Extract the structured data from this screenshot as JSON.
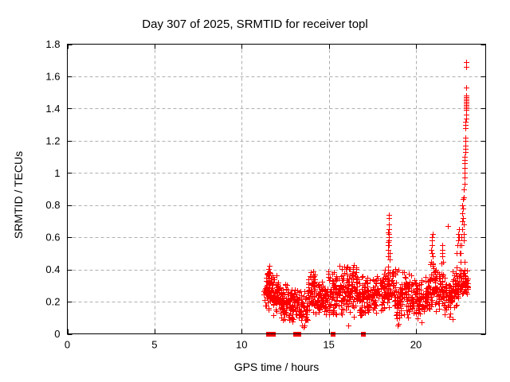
{
  "chart_data": {
    "type": "scatter",
    "title": "Day 307 of 2025, SRMTID for receiver topl",
    "xlabel": "GPS time / hours",
    "ylabel": "SRMTID / TECUs",
    "xlim": [
      0,
      24
    ],
    "ylim": [
      0,
      1.8
    ],
    "xticks": {
      "values": [
        0,
        5,
        10,
        15,
        20
      ],
      "labels": [
        "0",
        "5",
        "10",
        "15",
        "20"
      ]
    },
    "yticks": {
      "values": [
        0,
        0.2,
        0.4,
        0.6,
        0.8,
        1.0,
        1.2,
        1.4,
        1.6,
        1.8
      ],
      "labels": [
        "0",
        "0.2",
        "0.4",
        "0.6",
        "0.8",
        "1",
        "1.2",
        "1.4",
        "1.6",
        "1.8"
      ]
    },
    "grid": "dashed",
    "legend": "none",
    "marker": "plus",
    "marker_color": "#ff0000",
    "grid_color": "#b0b0b0",
    "axis_color": "#000000",
    "background": "#ffffff",
    "data_span_hours": [
      11.25,
      23.0
    ],
    "seed": 307,
    "noise_band_segments": [
      [
        11.25,
        11.45,
        14,
        0.16,
        0.32
      ],
      [
        11.4,
        11.62,
        40,
        0.12,
        0.44
      ],
      [
        11.62,
        12.1,
        60,
        0.1,
        0.4
      ],
      [
        12.1,
        12.65,
        70,
        0.08,
        0.34
      ],
      [
        12.65,
        13.05,
        52,
        0.07,
        0.3
      ],
      [
        13.05,
        13.45,
        36,
        0.06,
        0.3
      ],
      [
        13.45,
        13.8,
        34,
        0.04,
        0.28
      ],
      [
        13.8,
        14.25,
        62,
        0.12,
        0.42
      ],
      [
        14.25,
        14.95,
        72,
        0.1,
        0.33
      ],
      [
        14.95,
        15.55,
        66,
        0.1,
        0.42
      ],
      [
        15.55,
        16.05,
        62,
        0.08,
        0.46
      ],
      [
        16.05,
        16.5,
        56,
        0.09,
        0.47
      ],
      [
        16.5,
        17.05,
        62,
        0.08,
        0.42
      ],
      [
        17.05,
        17.6,
        60,
        0.1,
        0.36
      ],
      [
        17.6,
        18.2,
        66,
        0.1,
        0.4
      ],
      [
        18.2,
        18.55,
        42,
        0.14,
        0.45
      ],
      [
        18.55,
        19.1,
        56,
        0.06,
        0.42
      ],
      [
        19.1,
        19.8,
        70,
        0.08,
        0.4
      ],
      [
        19.8,
        20.4,
        62,
        0.07,
        0.35
      ],
      [
        20.4,
        20.8,
        46,
        0.1,
        0.38
      ],
      [
        20.8,
        21.15,
        42,
        0.14,
        0.48
      ],
      [
        21.15,
        21.6,
        46,
        0.12,
        0.42
      ],
      [
        21.6,
        22.1,
        56,
        0.1,
        0.36
      ],
      [
        22.1,
        22.45,
        42,
        0.14,
        0.42
      ],
      [
        22.45,
        22.8,
        36,
        0.2,
        0.42
      ],
      [
        22.8,
        23.0,
        20,
        0.24,
        0.4
      ]
    ],
    "feature_points": [
      [
        18.38,
        0.48
      ],
      [
        18.4,
        0.52
      ],
      [
        18.41,
        0.57
      ],
      [
        18.42,
        0.55
      ],
      [
        18.42,
        0.63
      ],
      [
        18.43,
        0.58
      ],
      [
        18.43,
        0.6
      ],
      [
        18.44,
        0.62
      ],
      [
        18.44,
        0.72
      ],
      [
        18.45,
        0.65
      ],
      [
        18.45,
        0.74
      ],
      [
        18.46,
        0.68
      ],
      [
        18.46,
        0.55
      ],
      [
        18.47,
        0.5
      ],
      [
        18.48,
        0.46
      ],
      [
        20.88,
        0.45
      ],
      [
        20.89,
        0.52
      ],
      [
        20.9,
        0.5
      ],
      [
        20.91,
        0.58
      ],
      [
        20.92,
        0.55
      ],
      [
        20.93,
        0.6
      ],
      [
        20.94,
        0.62
      ],
      [
        20.95,
        0.48
      ],
      [
        20.96,
        0.44
      ],
      [
        21.48,
        0.44
      ],
      [
        21.5,
        0.48
      ],
      [
        21.5,
        0.5
      ],
      [
        21.52,
        0.52
      ],
      [
        21.53,
        0.55
      ],
      [
        21.55,
        0.45
      ],
      [
        21.85,
        0.67
      ],
      [
        22.35,
        0.5
      ],
      [
        22.38,
        0.55
      ],
      [
        22.4,
        0.58
      ],
      [
        22.42,
        0.62
      ],
      [
        22.45,
        0.65
      ],
      [
        22.47,
        0.6
      ],
      [
        22.5,
        0.55
      ],
      [
        22.52,
        0.5
      ],
      [
        22.55,
        0.45
      ],
      [
        22.58,
        0.5
      ],
      [
        22.6,
        0.55
      ],
      [
        22.62,
        0.6
      ],
      [
        22.63,
        0.65
      ],
      [
        22.65,
        0.7
      ],
      [
        22.66,
        0.75
      ],
      [
        22.67,
        0.8
      ],
      [
        22.68,
        0.84
      ],
      [
        22.7,
        0.78
      ],
      [
        22.7,
        0.72
      ],
      [
        22.72,
        0.68
      ],
      [
        22.72,
        0.62
      ],
      [
        22.74,
        0.58
      ],
      [
        22.75,
        0.85
      ],
      [
        22.76,
        0.9
      ],
      [
        22.77,
        0.93
      ],
      [
        22.78,
        0.97
      ],
      [
        22.79,
        1.0
      ],
      [
        22.8,
        1.03
      ],
      [
        22.8,
        1.06
      ],
      [
        22.81,
        1.08
      ],
      [
        22.81,
        1.1
      ],
      [
        22.82,
        1.13
      ],
      [
        22.82,
        1.15
      ],
      [
        22.83,
        1.17
      ],
      [
        22.83,
        1.2
      ],
      [
        22.84,
        1.22
      ],
      [
        22.84,
        1.28
      ],
      [
        22.85,
        1.3
      ],
      [
        22.85,
        1.32
      ],
      [
        22.86,
        1.34
      ],
      [
        22.86,
        1.36
      ],
      [
        22.86,
        1.39
      ],
      [
        22.87,
        1.4
      ],
      [
        22.87,
        1.41
      ],
      [
        22.87,
        1.42
      ],
      [
        22.88,
        1.43
      ],
      [
        22.88,
        1.44
      ],
      [
        22.88,
        1.45
      ],
      [
        22.89,
        1.46
      ],
      [
        22.89,
        1.47
      ],
      [
        22.89,
        1.48
      ],
      [
        22.88,
        1.53
      ],
      [
        22.87,
        1.66
      ],
      [
        22.88,
        1.69
      ],
      [
        22.78,
        0.45
      ],
      [
        22.8,
        0.4
      ],
      [
        22.82,
        0.35
      ],
      [
        22.85,
        0.3
      ],
      [
        22.9,
        0.33
      ],
      [
        22.92,
        0.3
      ],
      [
        22.95,
        0.28
      ],
      [
        13.55,
        0.04
      ],
      [
        13.62,
        0.05
      ],
      [
        16.1,
        0.05
      ],
      [
        18.95,
        0.05
      ],
      [
        19.0,
        0.06
      ],
      [
        20.3,
        0.07
      ],
      [
        22.1,
        0.09
      ]
    ],
    "zero_markers": {
      "marker": "filled-square",
      "color": "#ff0000",
      "x": [
        11.55,
        11.8,
        13.1,
        13.3,
        15.25,
        17.0
      ],
      "y": 0
    }
  }
}
